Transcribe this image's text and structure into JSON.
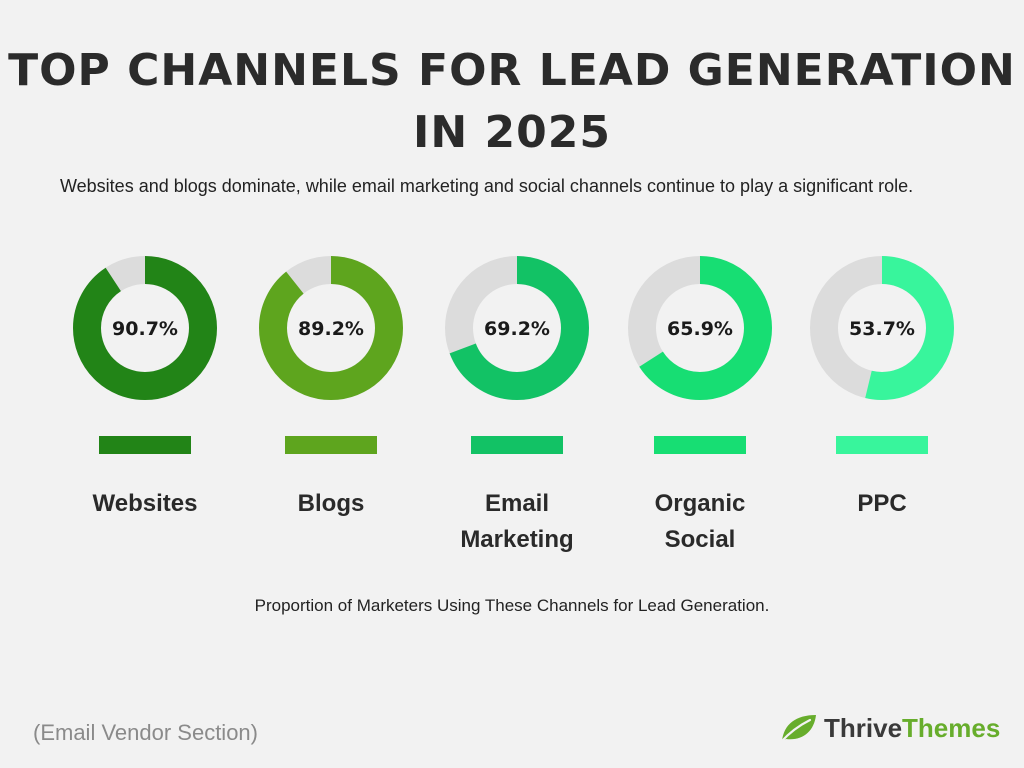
{
  "title_lines": [
    "TOP CHANNELS FOR LEAD GENERATION",
    "IN 2025"
  ],
  "subtitle": "Websites and blogs dominate, while email marketing and social channels continue to play a significant role.",
  "footnote": "Proportion of Marketers Using These Channels for Lead Generation.",
  "source": "(Email Vendor Section)",
  "brand": {
    "part1": "Thrive",
    "part2": "Themes",
    "icon": "leaf-icon",
    "color": "#67ad2c"
  },
  "track_color": "#dcdcdc",
  "chart_data": {
    "type": "pie",
    "title": "TOP CHANNELS FOR LEAD GENERATION IN 2025",
    "unit": "%",
    "categories": [
      "Websites",
      "Blogs",
      "Email Marketing",
      "Organic Social",
      "PPC"
    ],
    "label_lines": [
      [
        "Websites"
      ],
      [
        "Blogs"
      ],
      [
        "Email",
        "Marketing"
      ],
      [
        "Organic",
        "Social"
      ],
      [
        "PPC"
      ]
    ],
    "values": [
      90.7,
      89.2,
      69.2,
      65.9,
      53.7
    ],
    "value_labels": [
      "90.7%",
      "89.2%",
      "69.2%",
      "65.9%",
      "53.7%"
    ],
    "colors": [
      "#228417",
      "#5ea51e",
      "#12c265",
      "#17de73",
      "#38f59c"
    ]
  }
}
